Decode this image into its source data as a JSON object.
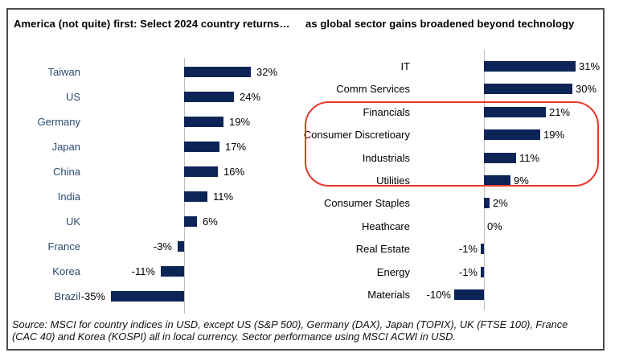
{
  "chart_data": [
    {
      "type": "bar",
      "orientation": "horizontal",
      "title": "America (not quite) first: Select 2024 country returns…",
      "categories": [
        "Taiwan",
        "US",
        "Germany",
        "Japan",
        "China",
        "India",
        "UK",
        "France",
        "Korea",
        "Brazil"
      ],
      "values": [
        32,
        24,
        19,
        17,
        16,
        11,
        6,
        -3,
        -11,
        -35
      ],
      "value_labels": [
        "32%",
        "24%",
        "19%",
        "17%",
        "16%",
        "11%",
        "6%",
        "-3%",
        "-11%",
        "-35%"
      ],
      "unit": "%",
      "bar_color": "#0d2457",
      "label_color": "#2a4a6e",
      "value_color": "#000000",
      "grid": false,
      "legend": false
    },
    {
      "type": "bar",
      "orientation": "horizontal",
      "title": "as global sector gains broadened beyond technology",
      "categories": [
        "IT",
        "Comm Services",
        "Financials",
        "Consumer Discretioary",
        "Industrials",
        "Utilities",
        "Consumer Staples",
        "Heathcare",
        "Real Estate",
        "Energy",
        "Materials"
      ],
      "values": [
        31,
        30,
        21,
        19,
        11,
        9,
        2,
        0,
        -1,
        -1,
        -10
      ],
      "value_labels": [
        "31%",
        "30%",
        "21%",
        "19%",
        "11%",
        "9%",
        "2%",
        "0%",
        "-1%",
        "-1%",
        "-10%"
      ],
      "unit": "%",
      "bar_color": "#0d2457",
      "label_color": "#000000",
      "value_color": "#000000",
      "grid": false,
      "legend": false,
      "highlight": {
        "shape": "rounded-rectangle",
        "color": "#e8372c",
        "categories": [
          "Financials",
          "Consumer Discretioary",
          "Industrials",
          "Utilities"
        ]
      }
    }
  ],
  "footer": {
    "line1": "Source: MSCI for country indices in USD, except US (S&P 500), Germany (DAX), Japan (TOPIX), UK (FTSE 100), France",
    "line2": "(CAC 40) and Korea (KOSPI) all in local currency. Sector performance using MSCI ACWI in USD."
  }
}
